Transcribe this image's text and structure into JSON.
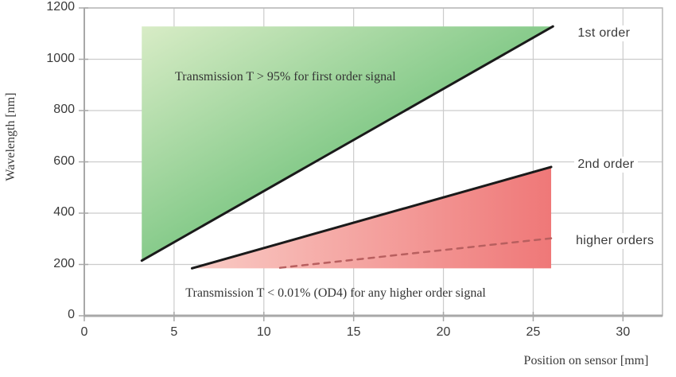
{
  "chart_data": {
    "type": "area",
    "title": "",
    "xlabel": "Position on sensor [mm]",
    "ylabel": "Wavelength [nm]",
    "xlim": [
      0,
      32.2
    ],
    "ylim": [
      0,
      1200
    ],
    "x_ticks": [
      0,
      5,
      10,
      15,
      20,
      25,
      30
    ],
    "y_ticks": [
      0,
      200,
      400,
      600,
      800,
      1000,
      1200
    ],
    "grid": true,
    "regions": [
      {
        "name": "first-order-region",
        "polygon": [
          [
            3.2,
            215
          ],
          [
            3.2,
            1128
          ],
          [
            26.1,
            1128
          ]
        ],
        "gradient": "diagonal",
        "fill_from": "#d8ecc6",
        "fill_to": "#36aa50"
      },
      {
        "name": "second-order-region",
        "polygon": [
          [
            6,
            185
          ],
          [
            26,
            580
          ],
          [
            26,
            185
          ]
        ],
        "gradient": "horizontal",
        "fill_from": "#f9cbc5",
        "fill_to": "#ef7878"
      }
    ],
    "lines": [
      {
        "name": "first-order-line",
        "points": [
          [
            3.2,
            215
          ],
          [
            26.1,
            1128
          ]
        ],
        "style": "solid",
        "color": "#1a1a1a",
        "width": 3
      },
      {
        "name": "second-order-line",
        "points": [
          [
            6,
            185
          ],
          [
            26,
            580
          ]
        ],
        "style": "solid",
        "color": "#1a1a1a",
        "width": 3
      },
      {
        "name": "higher-orders-line",
        "points": [
          [
            10.9,
            187
          ],
          [
            26,
            302
          ]
        ],
        "style": "dashed",
        "color": "#b85f5f",
        "width": 2.5
      }
    ],
    "series_labels": [
      {
        "text": "1st order",
        "x": 27.3,
        "y": 1100
      },
      {
        "text": "2nd order",
        "x": 27.3,
        "y": 590
      },
      {
        "text": "higher orders",
        "x": 27.2,
        "y": 290
      }
    ],
    "annotations": [
      {
        "text": "Transmission T > 95% for first order signal",
        "x": 11.2,
        "y": 930
      },
      {
        "text": "Transmission T < 0.01% (OD4) for any higher order signal",
        "x": 14.0,
        "y": 87
      }
    ],
    "legend_position": "right-inline",
    "colors": {
      "grid": "#cccccc",
      "frame": "#b8b8b8",
      "axis": "#a8a8a8",
      "tick": "#a8a8a8",
      "text": "#3a3a3a"
    }
  }
}
